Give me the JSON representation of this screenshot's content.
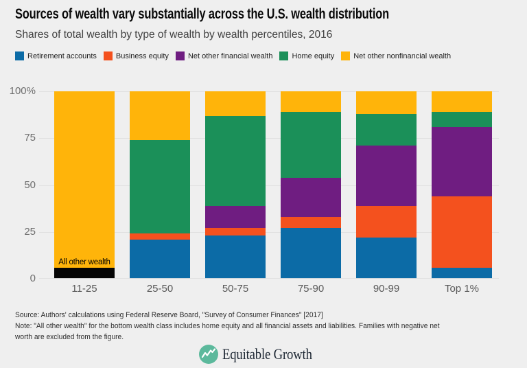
{
  "header": {
    "title": "Sources of wealth vary substantially across the U.S. wealth distribution",
    "subtitle": "Shares of total wealth by type of wealth by wealth percentiles, 2016"
  },
  "chart_data": {
    "type": "bar",
    "stacked": true,
    "title": "Sources of wealth vary substantially across the U.S. wealth distribution",
    "subtitle": "Shares of total wealth by type of wealth by wealth percentiles, 2016",
    "categories": [
      "11-25",
      "25-50",
      "50-75",
      "75-90",
      "90-99",
      "Top 1%"
    ],
    "series": [
      {
        "name": "All other wealth",
        "color": "#050505",
        "values": [
          6,
          0,
          0,
          0,
          0,
          0
        ]
      },
      {
        "name": "Retirement accounts",
        "color": "#0c6ba6",
        "values": [
          0,
          21,
          23,
          27,
          22,
          6
        ]
      },
      {
        "name": "Business equity",
        "color": "#f4511e",
        "values": [
          0,
          3,
          4,
          6,
          17,
          38
        ]
      },
      {
        "name": "Net other financial wealth",
        "color": "#6f1d81",
        "values": [
          0,
          0,
          12,
          21,
          32,
          37
        ]
      },
      {
        "name": "Home equity",
        "color": "#1b9059",
        "values": [
          0,
          50,
          48,
          35,
          17,
          8
        ]
      },
      {
        "name": "Net other nonfinancial wealth",
        "color": "#ffb40a",
        "values": [
          94,
          26,
          13,
          11,
          12,
          11
        ]
      }
    ],
    "legend": [
      {
        "label": "Retirement accounts",
        "color": "#0c6ba6"
      },
      {
        "label": "Business equity",
        "color": "#f4511e"
      },
      {
        "label": "Net other financial wealth",
        "color": "#6f1d81"
      },
      {
        "label": "Home equity",
        "color": "#1b9059"
      },
      {
        "label": "Net other nonfinancial wealth",
        "color": "#ffb40a"
      }
    ],
    "y_ticks": [
      "100%",
      "75",
      "50",
      "25",
      "0"
    ],
    "ylim": [
      0,
      100
    ],
    "grid": true,
    "legend_position": "top",
    "annotation": {
      "category_index": 0,
      "text": "All other wealth",
      "above_value": 6
    }
  },
  "footer": {
    "source": "Source: Authors' calculations using Federal Reserve Board, \"Survey of Consumer Finances\" [2017]",
    "note_lines": [
      "Note: \"All other wealth\" for the bottom wealth class includes home equity and all financial assets and liabilities. Families with negative net",
      "worth are excluded from the figure."
    ],
    "logo_text": "Equitable Growth"
  },
  "colors": {
    "background": "#efefef",
    "gridline": "#e0e0e0",
    "title_text": "#0a0a0a",
    "axis_text": "#6e6e6e",
    "logo_teal": "#5cb99c"
  }
}
